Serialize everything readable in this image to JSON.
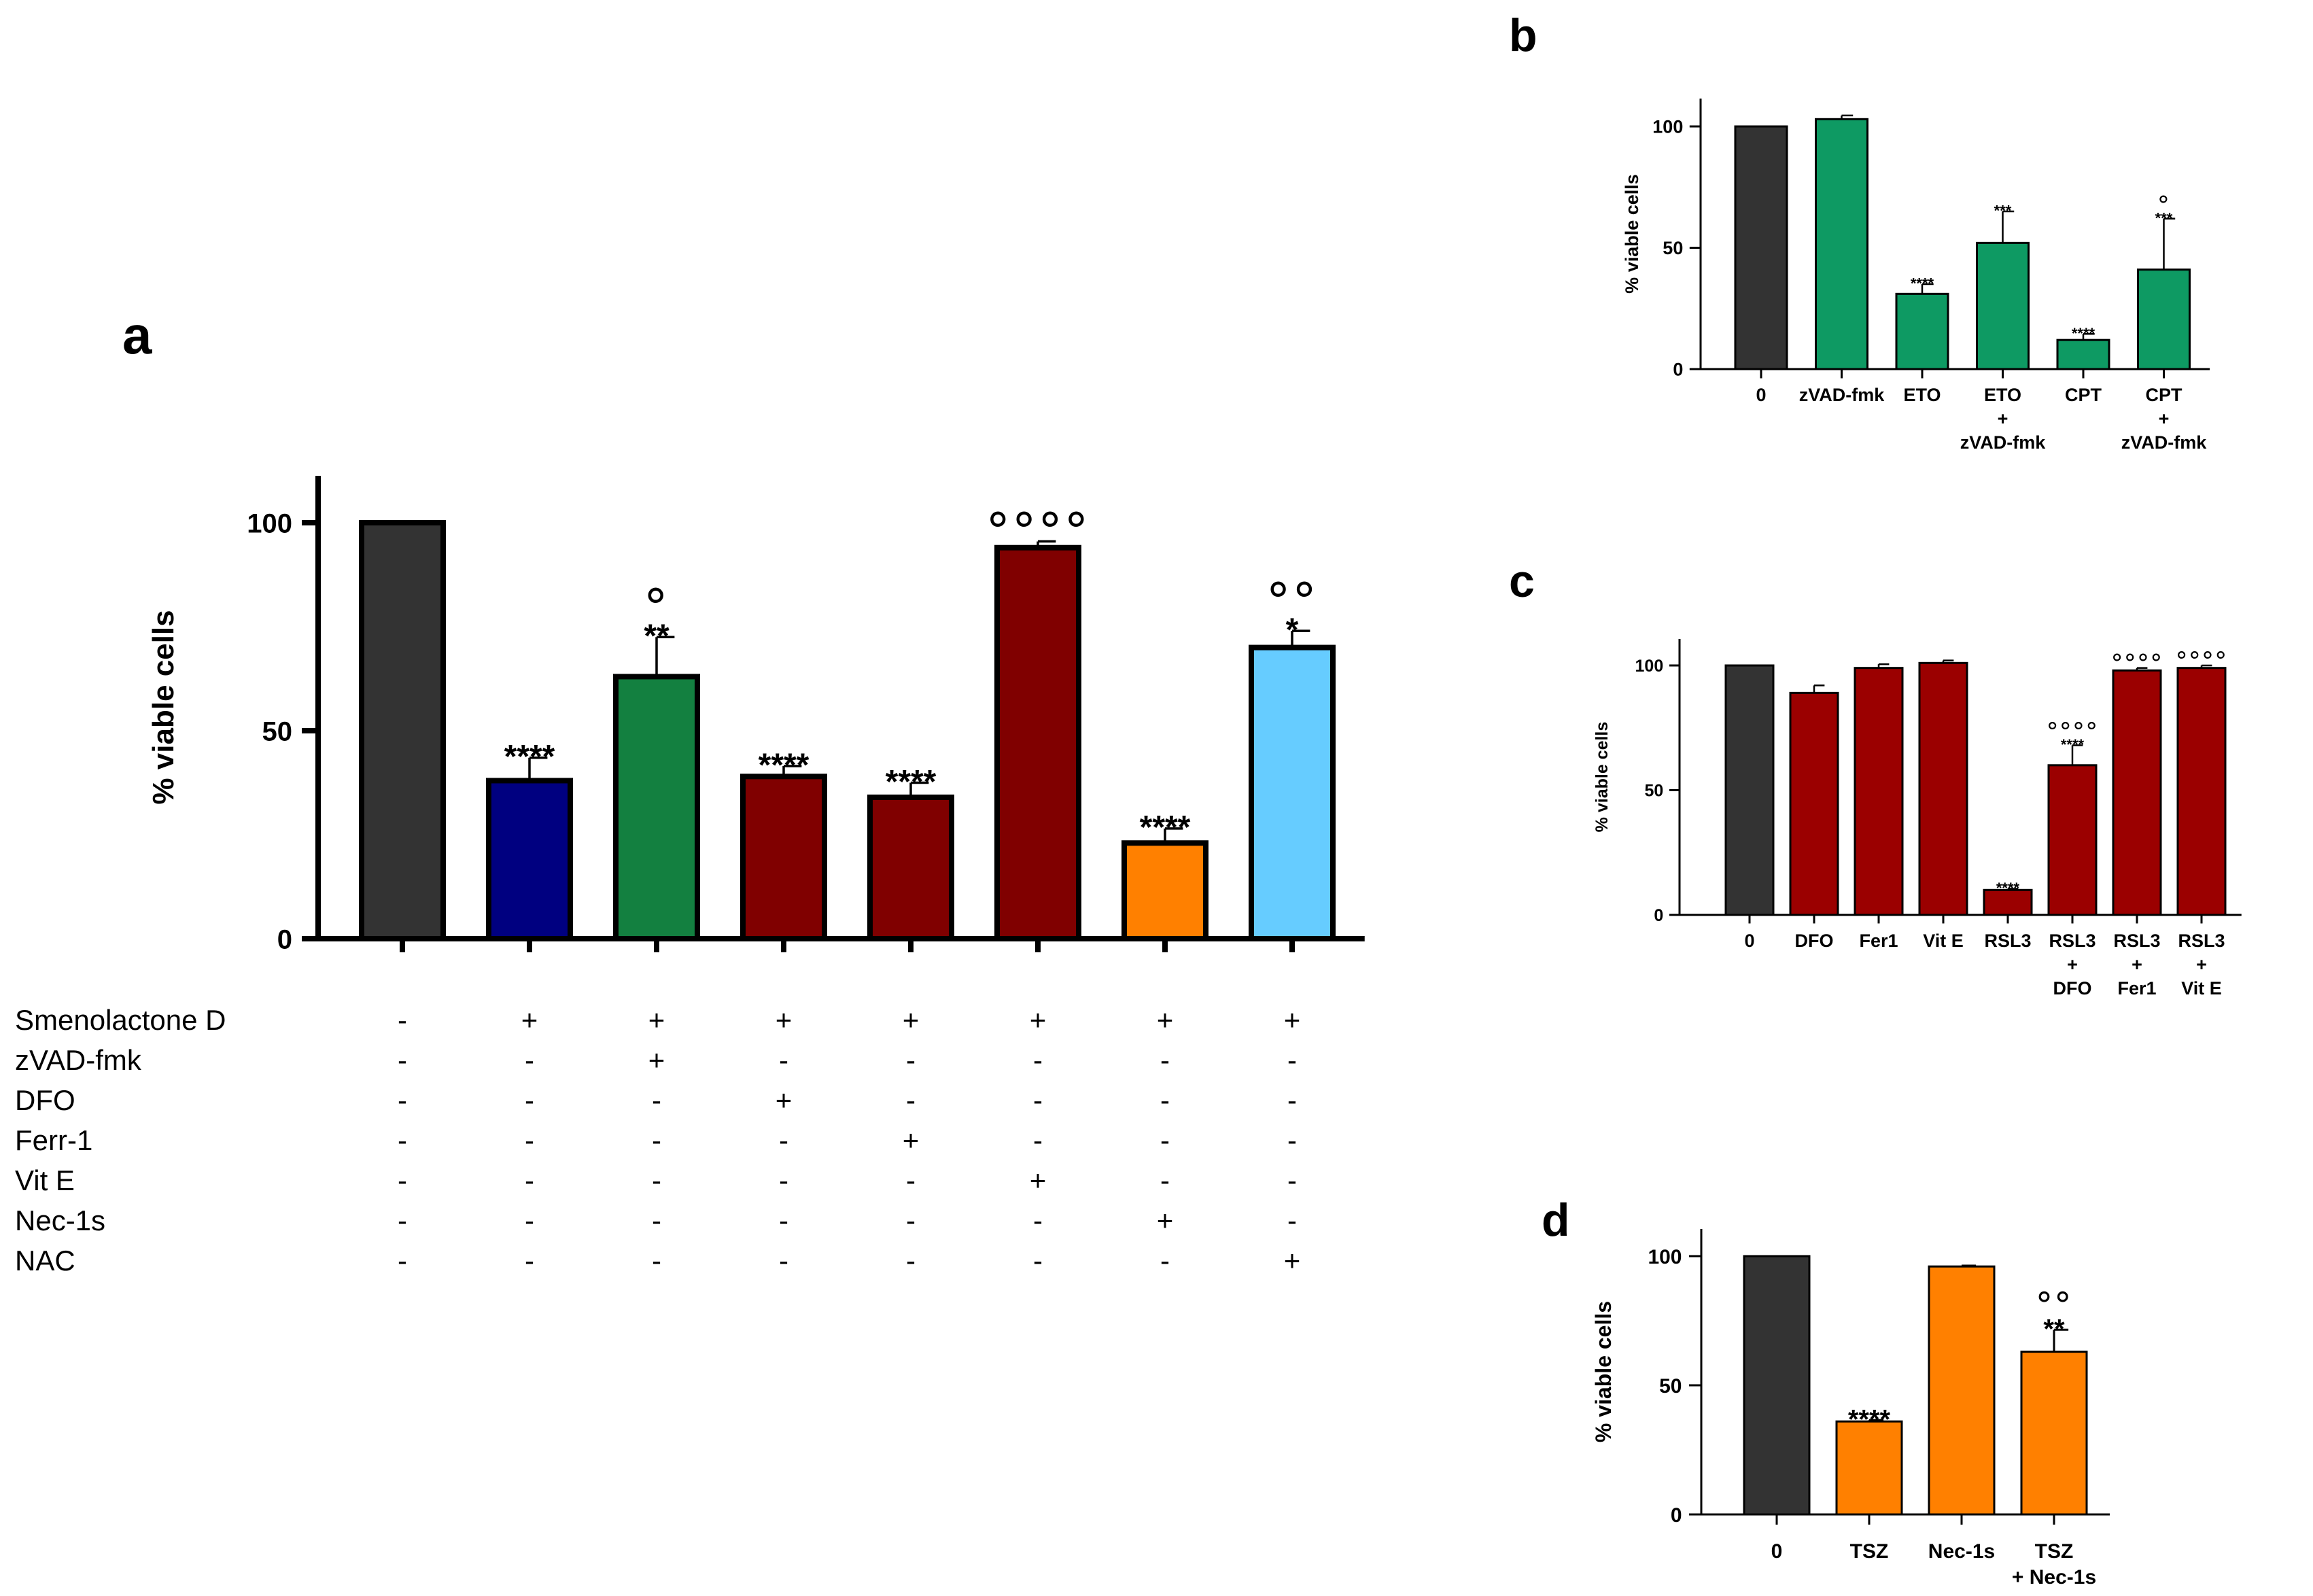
{
  "chart_data": [
    {
      "panel": "a",
      "type": "bar",
      "ylabel": "% viable cells",
      "ylim": [
        0,
        110
      ],
      "yticks": [
        "0",
        "50",
        "100"
      ],
      "bars": [
        {
          "value": 100,
          "err": 0,
          "color": "#333333",
          "stars": "",
          "circles": ""
        },
        {
          "value": 38,
          "err": 5.5,
          "color": "#000080",
          "stars": "****",
          "circles": ""
        },
        {
          "value": 63,
          "err": 9.5,
          "color": "#138040",
          "stars": "**",
          "circles": "°"
        },
        {
          "value": 39,
          "err": 2.5,
          "color": "#800000",
          "stars": "****",
          "circles": ""
        },
        {
          "value": 34,
          "err": 3.5,
          "color": "#800000",
          "stars": "****",
          "circles": ""
        },
        {
          "value": 94,
          "err": 1.5,
          "color": "#800000",
          "stars": "",
          "circles": "°°°°"
        },
        {
          "value": 23,
          "err": 3.5,
          "color": "#FF8000",
          "stars": "****",
          "circles": ""
        },
        {
          "value": 70,
          "err": 4,
          "color": "#66CCFF",
          "stars": "*",
          "circles": "°°"
        }
      ],
      "conditions": [
        {
          "label": "Smenolactone D",
          "signs": [
            "-",
            "+",
            "+",
            "+",
            "+",
            "+",
            "+",
            "+"
          ]
        },
        {
          "label": "zVAD-fmk",
          "signs": [
            "-",
            "-",
            "+",
            "-",
            "-",
            "-",
            "-",
            "-"
          ]
        },
        {
          "label": "DFO",
          "signs": [
            "-",
            "-",
            "-",
            "+",
            "-",
            "-",
            "-",
            "-"
          ]
        },
        {
          "label": "Ferr-1",
          "signs": [
            "-",
            "-",
            "-",
            "-",
            "+",
            "-",
            "-",
            "-"
          ]
        },
        {
          "label": "Vit E",
          "signs": [
            "-",
            "-",
            "-",
            "-",
            "-",
            "+",
            "-",
            "-"
          ]
        },
        {
          "label": "Nec-1s",
          "signs": [
            "-",
            "-",
            "-",
            "-",
            "-",
            "-",
            "+",
            "-"
          ]
        },
        {
          "label": "NAC",
          "signs": [
            "-",
            "-",
            "-",
            "-",
            "-",
            "-",
            "-",
            "+"
          ]
        }
      ]
    },
    {
      "panel": "b",
      "type": "bar",
      "ylabel": "% viable cells",
      "ylim": [
        0,
        110
      ],
      "yticks": [
        "0",
        "50",
        "100"
      ],
      "bars": [
        {
          "label": [
            "0"
          ],
          "value": 100,
          "err": 0,
          "color": "#333333",
          "stars": "",
          "circles": ""
        },
        {
          "label": [
            "zVAD-fmk"
          ],
          "value": 103,
          "err": 1.5,
          "color": "#0E9A63",
          "stars": "",
          "circles": ""
        },
        {
          "label": [
            "ETO"
          ],
          "value": 31,
          "err": 4,
          "color": "#0E9A63",
          "stars": "****",
          "circles": ""
        },
        {
          "label": [
            "ETO",
            "+",
            "zVAD-fmk"
          ],
          "value": 52,
          "err": 13,
          "color": "#0E9A63",
          "stars": "***",
          "circles": ""
        },
        {
          "label": [
            "CPT"
          ],
          "value": 12,
          "err": 2.5,
          "color": "#0E9A63",
          "stars": "****",
          "circles": ""
        },
        {
          "label": [
            "CPT",
            "+",
            "zVAD-fmk"
          ],
          "value": 41,
          "err": 21,
          "color": "#0E9A63",
          "stars": "***",
          "circles": "°"
        }
      ]
    },
    {
      "panel": "c",
      "type": "bar",
      "ylabel": "% viable cells",
      "ylim": [
        0,
        110
      ],
      "yticks": [
        "0",
        "50",
        "100"
      ],
      "bars": [
        {
          "label": [
            "0"
          ],
          "value": 100,
          "err": 0,
          "color": "#333333",
          "stars": "",
          "circles": ""
        },
        {
          "label": [
            "DFO"
          ],
          "value": 89,
          "err": 3,
          "color": "#9B0000",
          "stars": "",
          "circles": ""
        },
        {
          "label": [
            "Fer1"
          ],
          "value": 99,
          "err": 1.5,
          "color": "#9B0000",
          "stars": "",
          "circles": ""
        },
        {
          "label": [
            "Vit E"
          ],
          "value": 101,
          "err": 1,
          "color": "#9B0000",
          "stars": "",
          "circles": ""
        },
        {
          "label": [
            "RSL3"
          ],
          "value": 10,
          "err": 0.5,
          "color": "#9B0000",
          "stars": "****",
          "circles": ""
        },
        {
          "label": [
            "RSL3",
            "+",
            "DFO"
          ],
          "value": 60,
          "err": 8,
          "color": "#9B0000",
          "stars": "****",
          "circles": "°°°°"
        },
        {
          "label": [
            "RSL3",
            "+",
            "Fer1"
          ],
          "value": 98,
          "err": 1,
          "color": "#9B0000",
          "stars": "",
          "circles": "°°°°"
        },
        {
          "label": [
            "RSL3",
            "+",
            "Vit E"
          ],
          "value": 99,
          "err": 1,
          "color": "#9B0000",
          "stars": "",
          "circles": "°°°°"
        }
      ]
    },
    {
      "panel": "d",
      "type": "bar",
      "ylabel": "% viable cells",
      "ylim": [
        0,
        110
      ],
      "yticks": [
        "0",
        "50",
        "100"
      ],
      "bars": [
        {
          "label": [
            "0"
          ],
          "value": 100,
          "err": 0,
          "color": "#333333",
          "stars": "",
          "circles": ""
        },
        {
          "label": [
            "TSZ"
          ],
          "value": 36,
          "err": 0.5,
          "color": "#FF8000",
          "stars": "****",
          "circles": ""
        },
        {
          "label": [
            "Nec-1s"
          ],
          "value": 96,
          "err": 0.3,
          "color": "#FF8000",
          "stars": "",
          "circles": ""
        },
        {
          "label": [
            "TSZ",
            "+ Nec-1s"
          ],
          "value": 63,
          "err": 8.5,
          "color": "#FF8000",
          "stars": "**",
          "circles": "°°"
        }
      ]
    }
  ]
}
